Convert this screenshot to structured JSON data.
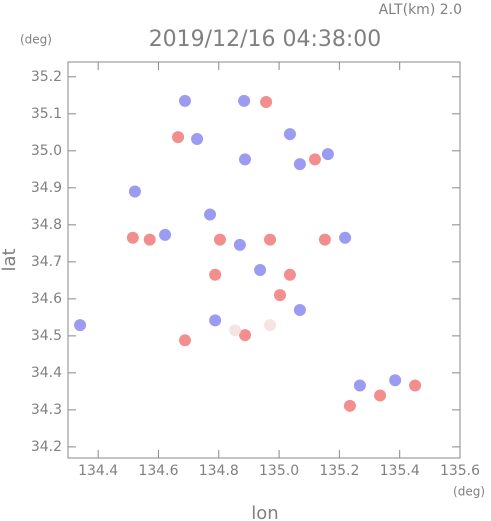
{
  "chart_data": {
    "type": "scatter",
    "title": "2019/12/16 04:38:00",
    "subtitle": "ALT(km) 2.0",
    "y_unit": "(deg)",
    "x_unit": "(deg)",
    "x_label": "lon",
    "y_label": "lat",
    "x": [
      134.688,
      134.884,
      134.957,
      134.665,
      134.728,
      135.036,
      134.887,
      135.069,
      135.119,
      135.162,
      134.522,
      134.515,
      134.571,
      134.622,
      134.771,
      134.804,
      134.87,
      134.97,
      135.152,
      135.219,
      134.788,
      134.937,
      135.036,
      134.34,
      134.688,
      134.788,
      134.887,
      134.97,
      135.069,
      135.003,
      135.268,
      135.335,
      135.235,
      135.451,
      135.385,
      134.854
    ],
    "values": [
      35.135,
      35.135,
      35.132,
      35.037,
      35.032,
      35.045,
      34.977,
      34.964,
      34.977,
      34.991,
      34.89,
      34.765,
      34.76,
      34.773,
      34.828,
      34.76,
      34.746,
      34.76,
      34.76,
      34.765,
      34.665,
      34.678,
      34.665,
      34.529,
      34.488,
      34.542,
      34.502,
      34.529,
      34.57,
      34.61,
      34.366,
      34.339,
      34.311,
      34.366,
      34.38,
      34.515
    ],
    "colors": [
      "#8a8af0",
      "#8a8af0",
      "#f07a7a",
      "#f07a7a",
      "#8a8af0",
      "#8a8af0",
      "#8a8af0",
      "#8a8af0",
      "#f07a7a",
      "#8a8af0",
      "#8a8af0",
      "#f07a7a",
      "#f07a7a",
      "#8a8af0",
      "#8a8af0",
      "#f07a7a",
      "#8a8af0",
      "#f07a7a",
      "#f07a7a",
      "#8a8af0",
      "#f07a7a",
      "#8a8af0",
      "#f07a7a",
      "#8a8af0",
      "#f07a7a",
      "#8a8af0",
      "#f07a7a",
      "#f4dede",
      "#8a8af0",
      "#f07a7a",
      "#8a8af0",
      "#f07a7a",
      "#f07a7a",
      "#f07a7a",
      "#8a8af0",
      "#f4dede"
    ],
    "xlim": [
      134.3,
      135.6
    ],
    "ylim": [
      34.17,
      35.24
    ],
    "xticks": [
      134.4,
      134.6,
      134.8,
      {
        "value": 135.0,
        "label": "135.0"
      },
      135.2,
      135.4,
      135.6
    ],
    "yticks": [
      34.2,
      34.3,
      34.4,
      34.5,
      34.6,
      34.7,
      34.8,
      34.9,
      {
        "value": 35.0,
        "label": "35.0"
      },
      35.1,
      35.2
    ]
  }
}
